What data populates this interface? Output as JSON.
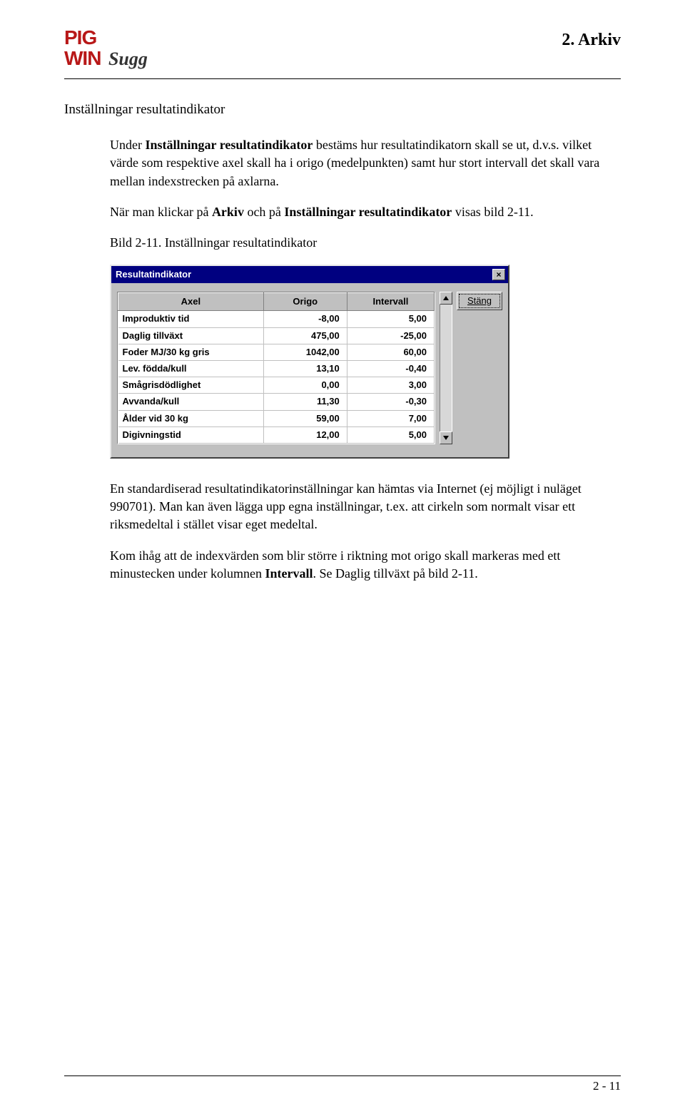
{
  "chapter_title": "2. Arkiv",
  "logo": {
    "line1": "PIG",
    "line2a": "WIN",
    "line2b": "Sugg"
  },
  "section_heading": "Inställningar resultatindikator",
  "para1_a": "Under ",
  "para1_b": "Inställningar resultatindikator",
  "para1_c": " bestäms hur resultatindikatorn skall se ut, d.v.s. vilket värde som respektive axel skall ha i origo (medelpunkten) samt hur stort intervall det skall vara mellan indexstrecken på axlarna.",
  "para2_a": "När man klickar på ",
  "para2_b": "Arkiv",
  "para2_c": " och på ",
  "para2_d": "Inställningar resultatindikator",
  "para2_e": " visas bild 2-11.",
  "caption": "Bild 2-11. Inställningar resultatindikator",
  "window": {
    "title": "Resultatindikator",
    "close_glyph": "×",
    "close_button_label": "Stäng",
    "columns": {
      "axel": "Axel",
      "origo": "Origo",
      "intervall": "Intervall"
    },
    "rows": [
      {
        "label": "Improduktiv tid",
        "origo": "-8,00",
        "intervall": "5,00"
      },
      {
        "label": "Daglig tillväxt",
        "origo": "475,00",
        "intervall": "-25,00"
      },
      {
        "label": "Foder MJ/30 kg gris",
        "origo": "1042,00",
        "intervall": "60,00"
      },
      {
        "label": "Lev. födda/kull",
        "origo": "13,10",
        "intervall": "-0,40"
      },
      {
        "label": "Smågrisdödlighet",
        "origo": "0,00",
        "intervall": "3,00"
      },
      {
        "label": "Avvanda/kull",
        "origo": "11,30",
        "intervall": "-0,30"
      },
      {
        "label": "Ålder vid 30 kg",
        "origo": "59,00",
        "intervall": "7,00"
      },
      {
        "label": "Digivningstid",
        "origo": "12,00",
        "intervall": "5,00"
      }
    ]
  },
  "para3": "En standardiserad resultatindikatorinställningar kan hämtas via Internet (ej möjligt i nuläget 990701). Man kan även lägga upp egna inställningar, t.ex. att cirkeln som normalt visar ett riksmedeltal i stället visar eget medeltal.",
  "para4_a": "Kom ihåg att de indexvärden som blir större i riktning mot origo skall markeras med ett minustecken under kolumnen ",
  "para4_b": "Intervall",
  "para4_c": ". Se Daglig tillväxt på bild 2-11.",
  "page_number": "2 - 11"
}
